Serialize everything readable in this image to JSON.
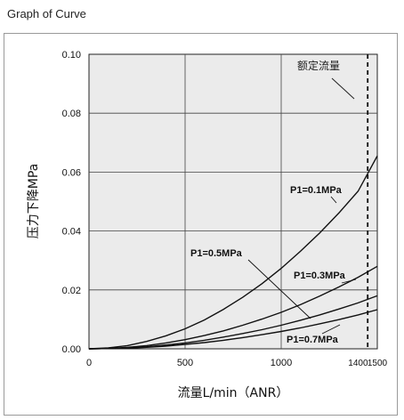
{
  "page": {
    "title": "Graph of Curve"
  },
  "chart_data": {
    "type": "line",
    "xlabel": "流量L/min（ANR）",
    "ylabel": "压力下降MPa",
    "xlim": [
      0,
      1500
    ],
    "ylim": [
      0,
      0.1
    ],
    "xticks": [
      {
        "value": 0,
        "label": "0"
      },
      {
        "value": 500,
        "label": "500"
      },
      {
        "value": 1000,
        "label": "1000"
      },
      {
        "value": 1400,
        "label": "1400"
      },
      {
        "value": 1500,
        "label": "1500"
      }
    ],
    "yticks": [
      {
        "value": 0,
        "label": "0.00"
      },
      {
        "value": 0.02,
        "label": "0.02"
      },
      {
        "value": 0.04,
        "label": "0.04"
      },
      {
        "value": 0.06,
        "label": "0.06"
      },
      {
        "value": 0.08,
        "label": "0.08"
      },
      {
        "value": 0.1,
        "label": "0.10"
      }
    ],
    "grid": true,
    "series": [
      {
        "name": "P1=0.1MPa",
        "x": [
          0,
          100,
          200,
          300,
          400,
          500,
          600,
          700,
          800,
          900,
          1000,
          1100,
          1200,
          1300,
          1400,
          1500
        ],
        "y": [
          0,
          0.0003,
          0.0011,
          0.0025,
          0.0044,
          0.0068,
          0.0098,
          0.0134,
          0.0175,
          0.0221,
          0.0273,
          0.0331,
          0.0393,
          0.0461,
          0.0535,
          0.0655
        ]
      },
      {
        "name": "P1=0.3MPa",
        "x": [
          0,
          100,
          200,
          300,
          400,
          500,
          600,
          700,
          800,
          900,
          1000,
          1100,
          1200,
          1300,
          1400,
          1500
        ],
        "y": [
          0,
          0.0001,
          0.0005,
          0.0011,
          0.002,
          0.0031,
          0.0045,
          0.0061,
          0.008,
          0.0101,
          0.0124,
          0.015,
          0.0179,
          0.021,
          0.0243,
          0.028
        ]
      },
      {
        "name": "P1=0.5MPa",
        "x": [
          0,
          100,
          200,
          300,
          400,
          500,
          600,
          700,
          800,
          900,
          1000,
          1100,
          1200,
          1300,
          1400,
          1500
        ],
        "y": [
          0,
          0.0001,
          0.0003,
          0.0007,
          0.0013,
          0.002,
          0.0029,
          0.004,
          0.0052,
          0.0065,
          0.008,
          0.0097,
          0.0115,
          0.0135,
          0.0156,
          0.018
        ]
      },
      {
        "name": "P1=0.7MPa",
        "x": [
          0,
          100,
          200,
          300,
          400,
          500,
          600,
          700,
          800,
          900,
          1000,
          1100,
          1200,
          1300,
          1400,
          1500
        ],
        "y": [
          0,
          0.0001,
          0.0002,
          0.0005,
          0.0009,
          0.0015,
          0.0021,
          0.0029,
          0.0038,
          0.0048,
          0.0059,
          0.0071,
          0.0085,
          0.0099,
          0.0115,
          0.0133
        ]
      }
    ],
    "reference_line": {
      "x": 1450,
      "label": "额定流量",
      "style": "dashed"
    }
  }
}
